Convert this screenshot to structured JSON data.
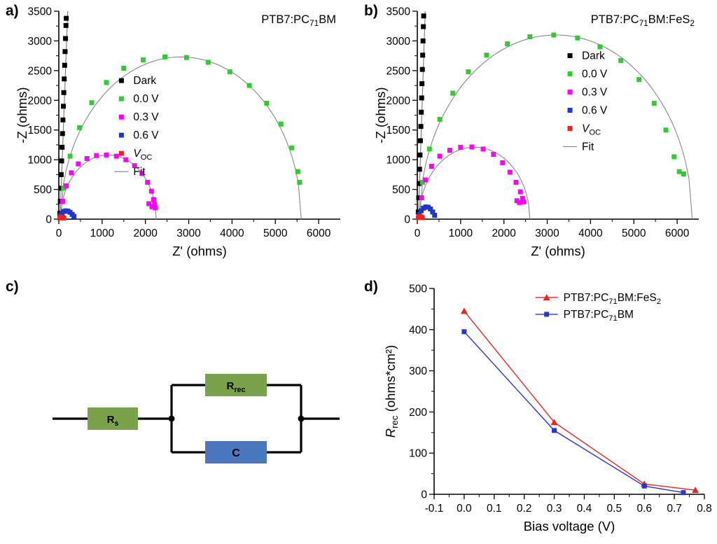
{
  "panel_labels": {
    "a": "a)",
    "b": "b)",
    "c": "c)",
    "d": "d)"
  },
  "colors": {
    "dark": "#000000",
    "v00": "#2fcc2f",
    "v03": "#ff00ff",
    "v06": "#1f35cf",
    "voc": "#e8251f",
    "fit": "#777777",
    "d_red": "#e8251f",
    "d_blue": "#2b35d0"
  },
  "chart_data": [
    {
      "id": "nyquist_a",
      "type": "scatter",
      "title": "PTB7:PC~71~BM",
      "xlabel": "Z' (ohms)",
      "ylabel": "-Z (ohms)",
      "xlim": [
        0,
        6500
      ],
      "ylim": [
        0,
        3500
      ],
      "xticks": [
        "0",
        "1000",
        "2000",
        "3000",
        "4000",
        "5000",
        "6000"
      ],
      "yticks": [
        "0",
        "500",
        "1000",
        "1500",
        "2000",
        "2500",
        "3000",
        "3500"
      ],
      "grid": false,
      "legend_pos": [
        0.2,
        0.3
      ],
      "series": [
        {
          "name": "Dark",
          "color": "#000000",
          "marker": "square",
          "points": [
            [
              25,
              100
            ],
            [
              35,
              300
            ],
            [
              45,
              520
            ],
            [
              55,
              750
            ],
            [
              65,
              980
            ],
            [
              75,
              1210
            ],
            [
              85,
              1440
            ],
            [
              95,
              1670
            ],
            [
              105,
              1900
            ],
            [
              115,
              2130
            ],
            [
              125,
              2360
            ],
            [
              135,
              2590
            ],
            [
              145,
              2820
            ],
            [
              155,
              3040
            ],
            [
              165,
              3260
            ],
            [
              172,
              3380
            ]
          ]
        },
        {
          "name": "0.0 V",
          "color": "#2fcc2f",
          "marker": "square",
          "points": [
            [
              110,
              520
            ],
            [
              260,
              1060
            ],
            [
              480,
              1540
            ],
            [
              760,
              1960
            ],
            [
              1100,
              2300
            ],
            [
              1500,
              2540
            ],
            [
              1950,
              2680
            ],
            [
              2450,
              2730
            ],
            [
              2950,
              2720
            ],
            [
              3450,
              2640
            ],
            [
              3950,
              2480
            ],
            [
              4400,
              2250
            ],
            [
              4800,
              1950
            ],
            [
              5130,
              1600
            ],
            [
              5380,
              1200
            ],
            [
              5520,
              800
            ],
            [
              5560,
              620
            ]
          ]
        },
        {
          "name": "0.3 V",
          "color": "#ff00ff",
          "marker": "square",
          "points": [
            [
              90,
              300
            ],
            [
              170,
              560
            ],
            [
              290,
              780
            ],
            [
              450,
              930
            ],
            [
              650,
              1020
            ],
            [
              870,
              1070
            ],
            [
              1100,
              1080
            ],
            [
              1330,
              1060
            ],
            [
              1550,
              1000
            ],
            [
              1750,
              900
            ],
            [
              1920,
              770
            ],
            [
              2050,
              620
            ],
            [
              2140,
              470
            ],
            [
              2190,
              330
            ],
            [
              2210,
              250
            ],
            [
              2230,
              190
            ],
            [
              2150,
              210
            ],
            [
              2080,
              260
            ]
          ]
        },
        {
          "name": "0.6 V",
          "color": "#1f35cf",
          "marker": "square",
          "points": [
            [
              40,
              60
            ],
            [
              75,
              105
            ],
            [
              115,
              130
            ],
            [
              160,
              140
            ],
            [
              210,
              135
            ],
            [
              260,
              115
            ],
            [
              310,
              80
            ],
            [
              350,
              45
            ]
          ]
        },
        {
          "name": "*V*~OC~",
          "color": "#e8251f",
          "marker": "square",
          "points": [
            [
              25,
              20
            ],
            [
              55,
              35
            ],
            [
              85,
              35
            ],
            [
              115,
              20
            ]
          ]
        },
        {
          "name": "Fit",
          "color": "#777777",
          "marker": "line",
          "points": []
        }
      ],
      "fits": [
        {
          "kind": "line",
          "from": [
            28,
            0
          ],
          "to": [
            205,
            3500
          ]
        },
        {
          "kind": "semicircle",
          "cx": 2820,
          "r": 2780,
          "peak": 2730
        },
        {
          "kind": "semicircle",
          "cx": 1145,
          "r": 1105,
          "peak": 1080
        },
        {
          "kind": "semicircle",
          "cx": 200,
          "r": 180,
          "peak": 140
        }
      ]
    },
    {
      "id": "nyquist_b",
      "type": "scatter",
      "title": "PTB7:PC~71~BM:FeS~2~",
      "xlabel": "Z' (ohms)",
      "ylabel": "-Z (ohms)",
      "xlim": [
        0,
        6500
      ],
      "ylim": [
        0,
        3500
      ],
      "xticks": [
        "0",
        "1000",
        "2000",
        "3000",
        "4000",
        "5000",
        "6000"
      ],
      "yticks": [
        "0",
        "500",
        "1000",
        "1500",
        "2000",
        "2500",
        "3000",
        "3500"
      ],
      "grid": false,
      "legend_pos": [
        0.52,
        0.18
      ],
      "series": [
        {
          "name": "Dark",
          "color": "#000000",
          "marker": "square",
          "points": [
            [
              22,
              120
            ],
            [
              32,
              360
            ],
            [
              42,
              600
            ],
            [
              52,
              840
            ],
            [
              62,
              1080
            ],
            [
              72,
              1320
            ],
            [
              82,
              1560
            ],
            [
              92,
              1800
            ],
            [
              100,
              2040
            ],
            [
              108,
              2280
            ],
            [
              116,
              2520
            ],
            [
              124,
              2760
            ],
            [
              132,
              3000
            ],
            [
              140,
              3240
            ],
            [
              147,
              3420
            ]
          ]
        },
        {
          "name": "0.0 V",
          "color": "#2fcc2f",
          "marker": "square",
          "points": [
            [
              120,
              620
            ],
            [
              280,
              1180
            ],
            [
              520,
              1680
            ],
            [
              820,
              2120
            ],
            [
              1180,
              2480
            ],
            [
              1600,
              2760
            ],
            [
              2080,
              2950
            ],
            [
              2600,
              3070
            ],
            [
              3150,
              3100
            ],
            [
              3700,
              3050
            ],
            [
              4220,
              2900
            ],
            [
              4700,
              2670
            ],
            [
              5120,
              2350
            ],
            [
              5470,
              1950
            ],
            [
              5740,
              1500
            ],
            [
              5930,
              1050
            ],
            [
              6050,
              800
            ],
            [
              6150,
              760
            ]
          ]
        },
        {
          "name": "0.3 V",
          "color": "#ff00ff",
          "marker": "square",
          "points": [
            [
              100,
              360
            ],
            [
              190,
              660
            ],
            [
              330,
              890
            ],
            [
              520,
              1060
            ],
            [
              750,
              1160
            ],
            [
              1000,
              1210
            ],
            [
              1260,
              1215
            ],
            [
              1520,
              1180
            ],
            [
              1760,
              1090
            ],
            [
              1970,
              950
            ],
            [
              2140,
              790
            ],
            [
              2280,
              620
            ],
            [
              2380,
              460
            ],
            [
              2430,
              350
            ],
            [
              2460,
              290
            ],
            [
              2360,
              280
            ],
            [
              2300,
              310
            ]
          ]
        },
        {
          "name": "0.6 V",
          "color": "#1f35cf",
          "marker": "square",
          "points": [
            [
              45,
              75
            ],
            [
              90,
              140
            ],
            [
              140,
              185
            ],
            [
              195,
              205
            ],
            [
              250,
              200
            ],
            [
              305,
              170
            ],
            [
              355,
              120
            ],
            [
              400,
              65
            ]
          ]
        },
        {
          "name": "*V*~OC~",
          "color": "#e8251f",
          "marker": "square",
          "points": [
            [
              25,
              25
            ],
            [
              55,
              45
            ],
            [
              85,
              40
            ],
            [
              115,
              25
            ]
          ]
        },
        {
          "name": "Fit",
          "color": "#777777",
          "marker": "line",
          "points": []
        }
      ],
      "fits": [
        {
          "kind": "line",
          "from": [
            25,
            0
          ],
          "to": [
            182,
            3500
          ]
        },
        {
          "kind": "semicircle",
          "cx": 3200,
          "r": 3150,
          "peak": 3100
        },
        {
          "kind": "semicircle",
          "cx": 1320,
          "r": 1280,
          "peak": 1210
        },
        {
          "kind": "semicircle",
          "cx": 225,
          "r": 205,
          "peak": 205
        }
      ]
    },
    {
      "id": "rrec",
      "type": "line",
      "title": "",
      "xlabel": "Bias voltage (V)",
      "ylabel": "*R*~rec~ (ohms*cm²)",
      "xlim": [
        -0.1,
        0.8
      ],
      "ylim": [
        0,
        500
      ],
      "xticks": [
        "-0.1",
        "0.0",
        "0.1",
        "0.2",
        "0.3",
        "0.4",
        "0.5",
        "0.6",
        "0.7",
        "0.8"
      ],
      "yticks": [
        "0",
        "100",
        "200",
        "300",
        "400",
        "500"
      ],
      "grid": false,
      "legend_pos": [
        0.38,
        0.01
      ],
      "legend_style": "line-marker",
      "series": [
        {
          "name": "PTB7:PC~71~BM:FeS~2~",
          "color": "#e8251f",
          "marker": "triangle",
          "line": true,
          "points": [
            [
              0.0,
              445
            ],
            [
              0.3,
              175
            ],
            [
              0.6,
              25
            ],
            [
              0.77,
              10
            ]
          ]
        },
        {
          "name": "PTB7:PC~71~BM",
          "color": "#2b35d0",
          "marker": "square",
          "line": true,
          "points": [
            [
              0.0,
              395
            ],
            [
              0.3,
              155
            ],
            [
              0.6,
              20
            ],
            [
              0.73,
              4
            ]
          ]
        }
      ],
      "fits": []
    }
  ],
  "circuit": {
    "rs_label": "R~s~",
    "rrec_label": "R~rec~",
    "c_label": "C",
    "resistor_color": "#7aa24a",
    "capacitor_color": "#4a78bf",
    "wire_color": "#000000"
  }
}
